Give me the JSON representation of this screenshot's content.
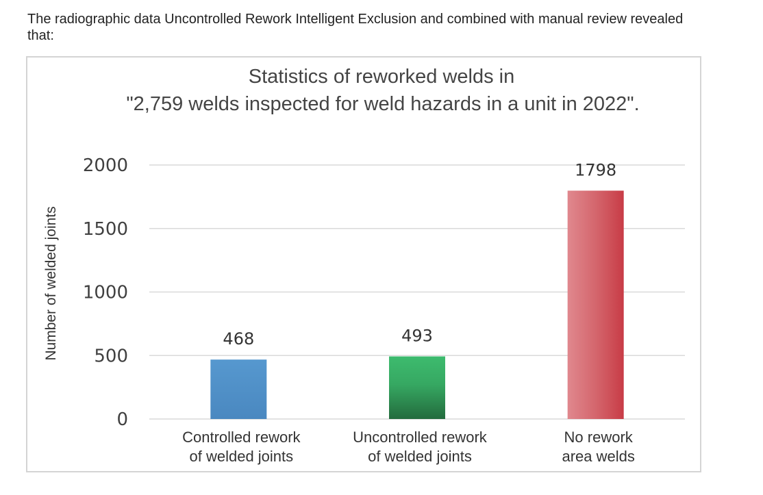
{
  "intro_text": "The radiographic data Uncontrolled Rework Intelligent Exclusion and combined with manual review revealed that:",
  "chart_data": {
    "type": "bar",
    "title": [
      "Statistics of reworked welds in",
      "\"2,759 welds inspected for weld hazards in a unit in 2022\"."
    ],
    "xlabel": "",
    "ylabel": "Number of welded joints",
    "ylim": [
      0,
      2000
    ],
    "yticks": [
      0,
      500,
      1000,
      1500,
      2000
    ],
    "grid": true,
    "categories": [
      [
        "Controlled rework",
        "of welded joints"
      ],
      [
        "Uncontrolled rework",
        "of welded joints"
      ],
      [
        "No rework",
        "area welds"
      ]
    ],
    "values": [
      468,
      493,
      1798
    ],
    "colors": [
      "#4f90c9",
      "#3bb56a",
      "#d9575f"
    ],
    "data_labels": [
      "468",
      "493",
      "1798"
    ]
  }
}
